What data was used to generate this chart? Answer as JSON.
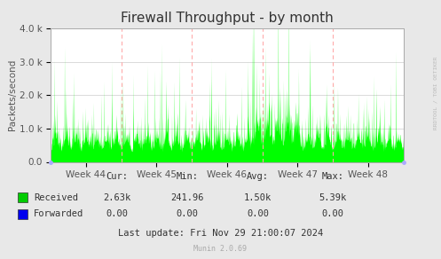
{
  "title": "Firewall Throughput - by month",
  "ylabel": "Packets/second",
  "ylim": [
    0,
    4000
  ],
  "ytick_labels": [
    "0.0",
    "1.0 k",
    "2.0 k",
    "3.0 k",
    "4.0 k"
  ],
  "ytick_values": [
    0,
    1000,
    2000,
    3000,
    4000
  ],
  "week_labels": [
    "Week 44",
    "Week 45",
    "Week 46",
    "Week 47",
    "Week 48"
  ],
  "area_color": "#00ff00",
  "legend_items": [
    {
      "label": "Received",
      "color": "#00cc00"
    },
    {
      "label": "Forwarded",
      "color": "#0000ee"
    }
  ],
  "stats": {
    "headers": [
      "Cur:",
      "Min:",
      "Avg:",
      "Max:"
    ],
    "received": [
      "2.63k",
      "241.96",
      "1.50k",
      "5.39k"
    ],
    "forwarded": [
      "0.00",
      "0.00",
      "0.00",
      "0.00"
    ]
  },
  "last_update": "Last update: Fri Nov 29 21:00:07 2024",
  "munin_version": "Munin 2.0.69",
  "watermark": "RRDTOOL / TOBI OETIKER",
  "bg_color": "#e8e8e8",
  "plot_bg_color": "#ffffff",
  "title_fontsize": 11,
  "axis_label_fontsize": 7.5,
  "tick_fontsize": 7.5,
  "stats_fontsize": 7.5
}
